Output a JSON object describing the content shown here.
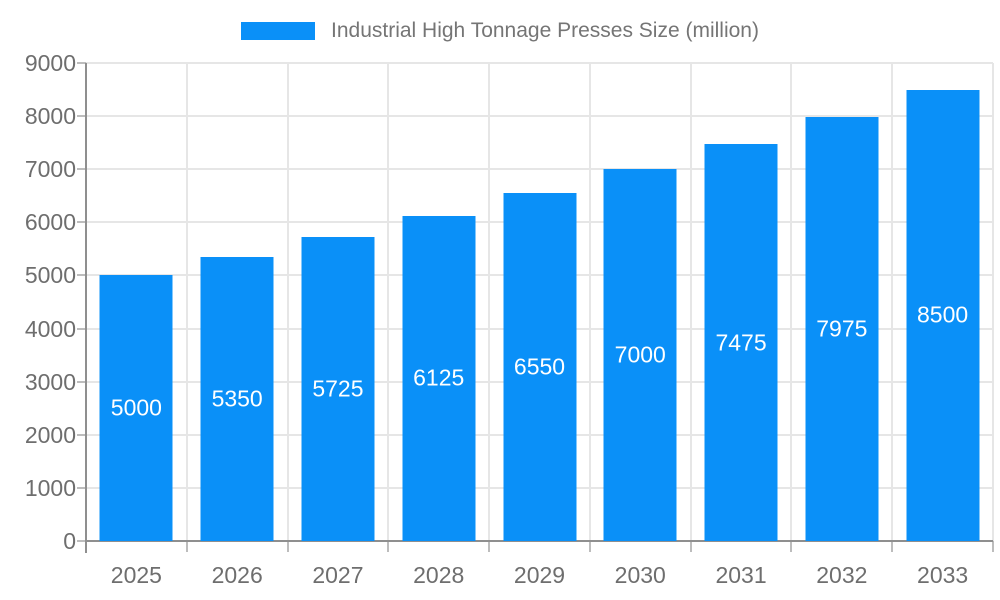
{
  "legend": {
    "label": "Industrial High Tonnage Presses Size (million)"
  },
  "chart_data": {
    "type": "bar",
    "title": "",
    "categories": [
      "2025",
      "2026",
      "2027",
      "2028",
      "2029",
      "2030",
      "2031",
      "2032",
      "2033"
    ],
    "values": [
      5000,
      5350,
      5725,
      6125,
      6550,
      7000,
      7475,
      7975,
      8500
    ],
    "series_name": "Industrial High Tonnage Presses Size (million)",
    "xlabel": "",
    "ylabel": "",
    "ylim": [
      0,
      9000
    ],
    "ytick_step": 1000,
    "grid": true,
    "legend_position": "top",
    "bar_label_position": "inside-middle"
  },
  "colors": {
    "bar": "#0a90f8",
    "bar_label": "#ffffff",
    "grid": "#e6e6e6",
    "axis_line": "#8f8f8f",
    "tick": "#bdbdbd",
    "axis_text": "#6e6e6e",
    "legend_text": "#757575",
    "background": "#ffffff"
  }
}
